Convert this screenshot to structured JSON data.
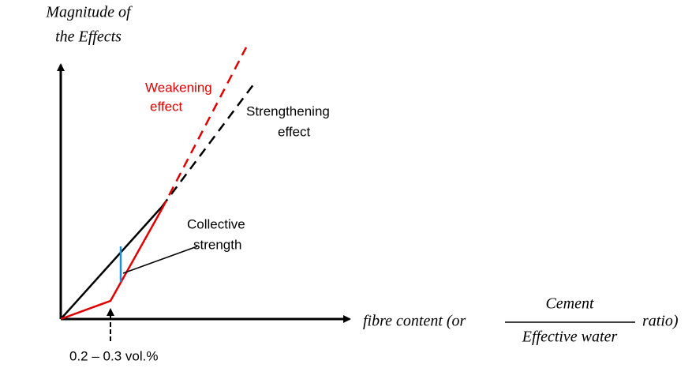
{
  "y_axis_label": {
    "lines": [
      "Magnitude of",
      "the Effects"
    ]
  },
  "x_axis_label": {
    "prefix": "fibre content (or",
    "numerator": "Cement",
    "denominator": "Effective water",
    "suffix": "ratio)"
  },
  "curves": {
    "weakening": [
      "Weakening",
      "effect"
    ],
    "strengthening": [
      "Strengthening",
      "effect"
    ],
    "collective": [
      "Collective",
      "strength"
    ]
  },
  "threshold_label": "0.2 – 0.3 vol.%"
}
